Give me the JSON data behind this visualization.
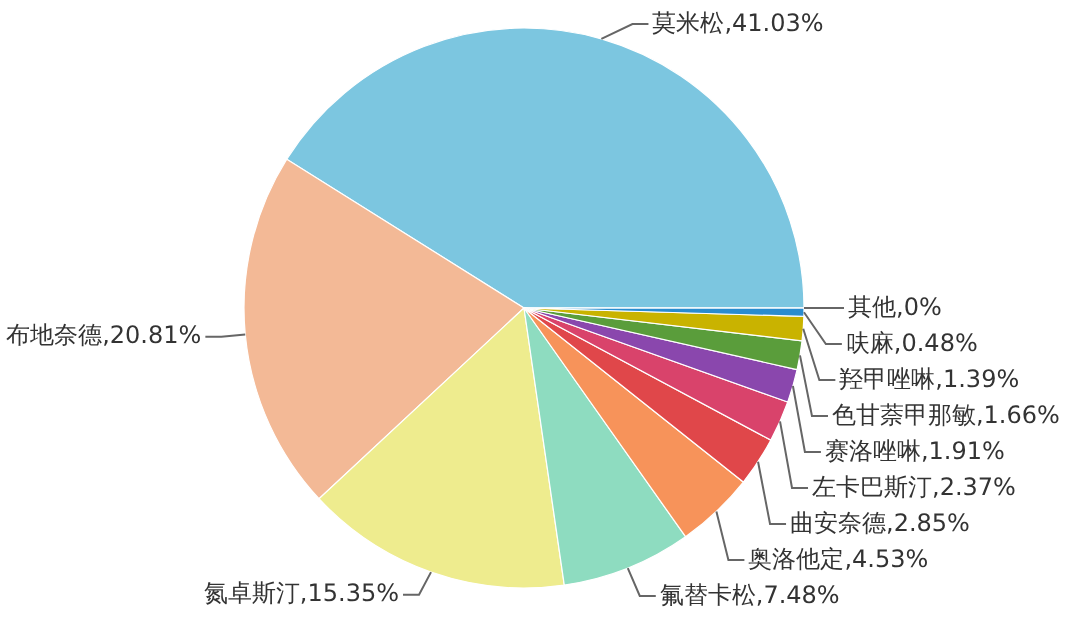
{
  "chart_data": {
    "type": "pie",
    "categories": [
      "莫米松",
      "布地奈德",
      "氮卓斯汀",
      "氟替卡松",
      "奥洛他定",
      "曲安奈德",
      "左卡巴斯汀",
      "赛洛唑啉",
      "色甘萘甲那敏",
      "羟甲唑啉",
      "呋麻",
      "其他"
    ],
    "values": [
      41.03,
      20.81,
      15.35,
      7.48,
      4.53,
      2.85,
      2.37,
      1.91,
      1.66,
      1.39,
      0.48,
      0
    ],
    "value_labels": [
      "41.03%",
      "20.81%",
      "15.35%",
      "7.48%",
      "4.53%",
      "2.85%",
      "2.37%",
      "1.91%",
      "1.66%",
      "1.39%",
      "0.48%",
      "0%"
    ],
    "colors": [
      "#7cc6e0",
      "#f3b996",
      "#eeec8e",
      "#8edcc0",
      "#f7935a",
      "#e0474a",
      "#d9436b",
      "#8a47ad",
      "#5a9d3b",
      "#c9b300",
      "#2a8ccf",
      "#a32a2a"
    ]
  }
}
